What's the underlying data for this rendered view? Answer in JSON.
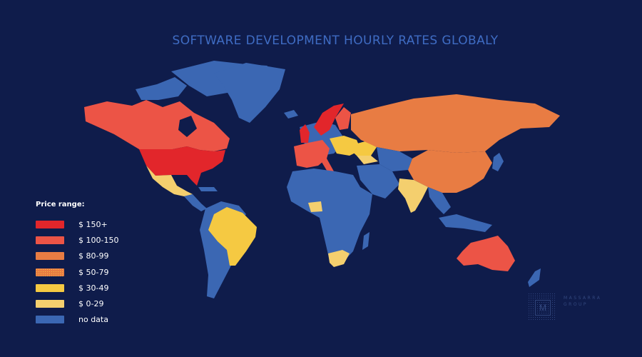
{
  "title": "SOFTWARE DEVELOPMENT HOURLY RATES GLOBALY",
  "colors": {
    "background": "#0f1c4b",
    "title": "#3f6cc3",
    "rate_150_plus": "#e2262b",
    "rate_100_150": "#ec5446",
    "rate_80_99": "#e87c43",
    "rate_50_79": "#f39a4a",
    "rate_30_49": "#f5c942",
    "rate_0_29": "#f4cf6e",
    "no_data": "#3b67b3"
  },
  "legend": {
    "title": "Price range:",
    "items": [
      {
        "label": "$ 150+",
        "color": "#e2262b",
        "pattern": "solid"
      },
      {
        "label": "$ 100-150",
        "color": "#ec5446",
        "pattern": "solid"
      },
      {
        "label": "$ 80-99",
        "color": "#e87c43",
        "pattern": "solid"
      },
      {
        "label": "$ 50-79",
        "color": "#f39a4a",
        "pattern": "dotted"
      },
      {
        "label": "$ 30-49",
        "color": "#f5c942",
        "pattern": "solid"
      },
      {
        "label": "$ 0-29",
        "color": "#f4cf6e",
        "pattern": "solid"
      },
      {
        "label": "no data",
        "color": "#3b67b3",
        "pattern": "solid"
      }
    ]
  },
  "regions": {
    "usa": "$ 150+",
    "uk": "$ 150+",
    "norway_sweden": "$ 150+",
    "canada": "$ 100-150",
    "australia": "$ 100-150",
    "western_europe": "$ 100-150",
    "russia": "$ 80-99",
    "china": "$ 80-99",
    "ukraine": "$ 30-49",
    "brazil": "$ 30-49",
    "mexico": "$ 0-29",
    "india": "$ 0-29",
    "south_africa": "$ 0-29"
  },
  "logo": {
    "mark_letter": "M",
    "text_lines": [
      "MASSARRA",
      "GROUP"
    ]
  }
}
